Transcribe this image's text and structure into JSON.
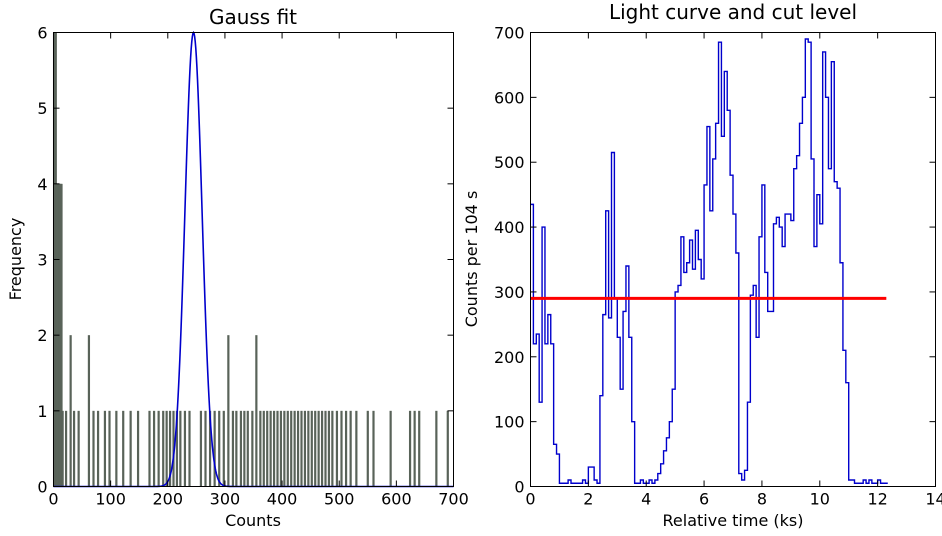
{
  "chart_data": [
    {
      "type": "histogram",
      "title": "Gauss fit",
      "xlabel": "Counts",
      "ylabel": "Frequency",
      "xlim": [
        0,
        700
      ],
      "ylim": [
        0,
        6
      ],
      "x_ticks": [
        "0",
        "100",
        "200",
        "300",
        "400",
        "500",
        "600",
        "700"
      ],
      "y_ticks": [
        "0",
        "1",
        "2",
        "3",
        "4",
        "5",
        "6"
      ],
      "colors": {
        "bars": "#596359",
        "fit": "#0000cc"
      },
      "histogram_bars": [
        {
          "x": 1,
          "y": 6
        },
        {
          "x": 4,
          "y": 6
        },
        {
          "x": 6,
          "y": 4
        },
        {
          "x": 8,
          "y": 4
        },
        {
          "x": 10,
          "y": 4
        },
        {
          "x": 12,
          "y": 4
        },
        {
          "x": 14,
          "y": 4
        },
        {
          "x": 16,
          "y": 1
        },
        {
          "x": 22,
          "y": 1
        },
        {
          "x": 30,
          "y": 2
        },
        {
          "x": 36,
          "y": 1
        },
        {
          "x": 44,
          "y": 1
        },
        {
          "x": 62,
          "y": 2
        },
        {
          "x": 70,
          "y": 1
        },
        {
          "x": 78,
          "y": 1
        },
        {
          "x": 90,
          "y": 1
        },
        {
          "x": 98,
          "y": 1
        },
        {
          "x": 110,
          "y": 1
        },
        {
          "x": 122,
          "y": 1
        },
        {
          "x": 135,
          "y": 1
        },
        {
          "x": 148,
          "y": 1
        },
        {
          "x": 168,
          "y": 1
        },
        {
          "x": 176,
          "y": 1
        },
        {
          "x": 184,
          "y": 1
        },
        {
          "x": 192,
          "y": 1
        },
        {
          "x": 198,
          "y": 1
        },
        {
          "x": 204,
          "y": 1
        },
        {
          "x": 210,
          "y": 1
        },
        {
          "x": 216,
          "y": 1
        },
        {
          "x": 222,
          "y": 1
        },
        {
          "x": 230,
          "y": 1
        },
        {
          "x": 238,
          "y": 1
        },
        {
          "x": 258,
          "y": 1
        },
        {
          "x": 266,
          "y": 1
        },
        {
          "x": 274,
          "y": 1
        },
        {
          "x": 282,
          "y": 1
        },
        {
          "x": 290,
          "y": 1
        },
        {
          "x": 298,
          "y": 1
        },
        {
          "x": 306,
          "y": 2
        },
        {
          "x": 314,
          "y": 1
        },
        {
          "x": 320,
          "y": 1
        },
        {
          "x": 328,
          "y": 1
        },
        {
          "x": 334,
          "y": 1
        },
        {
          "x": 340,
          "y": 1
        },
        {
          "x": 348,
          "y": 1
        },
        {
          "x": 355,
          "y": 2
        },
        {
          "x": 362,
          "y": 1
        },
        {
          "x": 368,
          "y": 1
        },
        {
          "x": 374,
          "y": 1
        },
        {
          "x": 380,
          "y": 1
        },
        {
          "x": 386,
          "y": 1
        },
        {
          "x": 392,
          "y": 1
        },
        {
          "x": 398,
          "y": 1
        },
        {
          "x": 404,
          "y": 1
        },
        {
          "x": 410,
          "y": 1
        },
        {
          "x": 416,
          "y": 1
        },
        {
          "x": 422,
          "y": 1
        },
        {
          "x": 428,
          "y": 1
        },
        {
          "x": 434,
          "y": 1
        },
        {
          "x": 440,
          "y": 1
        },
        {
          "x": 446,
          "y": 1
        },
        {
          "x": 452,
          "y": 1
        },
        {
          "x": 458,
          "y": 1
        },
        {
          "x": 464,
          "y": 1
        },
        {
          "x": 470,
          "y": 1
        },
        {
          "x": 476,
          "y": 1
        },
        {
          "x": 482,
          "y": 1
        },
        {
          "x": 488,
          "y": 1
        },
        {
          "x": 496,
          "y": 1
        },
        {
          "x": 504,
          "y": 1
        },
        {
          "x": 512,
          "y": 1
        },
        {
          "x": 520,
          "y": 1
        },
        {
          "x": 530,
          "y": 1
        },
        {
          "x": 550,
          "y": 1
        },
        {
          "x": 560,
          "y": 1
        },
        {
          "x": 590,
          "y": 1
        },
        {
          "x": 624,
          "y": 1
        },
        {
          "x": 632,
          "y": 1
        },
        {
          "x": 640,
          "y": 1
        },
        {
          "x": 670,
          "y": 1
        },
        {
          "x": 690,
          "y": 1
        }
      ],
      "gauss_fit": {
        "amplitude": 6,
        "mean": 245,
        "sigma": 15
      }
    },
    {
      "type": "line",
      "title": "Light curve and cut level",
      "xlabel": "Relative time (ks)",
      "ylabel": "Counts per 104 s",
      "xlim": [
        0,
        14
      ],
      "ylim": [
        0,
        700
      ],
      "x_ticks": [
        "0",
        "2",
        "4",
        "6",
        "8",
        "10",
        "12",
        "14"
      ],
      "y_ticks": [
        "0",
        "100",
        "200",
        "300",
        "400",
        "500",
        "600",
        "700"
      ],
      "colors": {
        "curve": "#0000cc",
        "cut": "#ff0000"
      },
      "series": [
        {
          "step": "post",
          "points": [
            [
              0.0,
              435
            ],
            [
              0.1,
              220
            ],
            [
              0.2,
              235
            ],
            [
              0.3,
              130
            ],
            [
              0.4,
              400
            ],
            [
              0.5,
              220
            ],
            [
              0.6,
              265
            ],
            [
              0.7,
              220
            ],
            [
              0.8,
              65
            ],
            [
              0.9,
              50
            ],
            [
              1.0,
              5
            ],
            [
              1.3,
              10
            ],
            [
              1.4,
              5
            ],
            [
              1.8,
              10
            ],
            [
              1.9,
              5
            ],
            [
              2.0,
              30
            ],
            [
              2.2,
              10
            ],
            [
              2.3,
              5
            ],
            [
              2.4,
              140
            ],
            [
              2.5,
              265
            ],
            [
              2.6,
              425
            ],
            [
              2.7,
              260
            ],
            [
              2.8,
              515
            ],
            [
              2.9,
              290
            ],
            [
              3.0,
              230
            ],
            [
              3.1,
              150
            ],
            [
              3.2,
              270
            ],
            [
              3.3,
              340
            ],
            [
              3.4,
              230
            ],
            [
              3.5,
              100
            ],
            [
              3.6,
              5
            ],
            [
              3.8,
              10
            ],
            [
              3.9,
              5
            ],
            [
              4.1,
              10
            ],
            [
              4.2,
              5
            ],
            [
              4.3,
              10
            ],
            [
              4.4,
              20
            ],
            [
              4.5,
              35
            ],
            [
              4.6,
              55
            ],
            [
              4.7,
              75
            ],
            [
              4.8,
              100
            ],
            [
              4.9,
              150
            ],
            [
              5.0,
              300
            ],
            [
              5.1,
              310
            ],
            [
              5.2,
              385
            ],
            [
              5.3,
              330
            ],
            [
              5.4,
              345
            ],
            [
              5.5,
              380
            ],
            [
              5.6,
              335
            ],
            [
              5.7,
              395
            ],
            [
              5.8,
              350
            ],
            [
              5.9,
              320
            ],
            [
              6.0,
              465
            ],
            [
              6.1,
              555
            ],
            [
              6.2,
              425
            ],
            [
              6.3,
              505
            ],
            [
              6.4,
              560
            ],
            [
              6.5,
              685
            ],
            [
              6.6,
              540
            ],
            [
              6.7,
              640
            ],
            [
              6.8,
              580
            ],
            [
              6.9,
              480
            ],
            [
              7.0,
              420
            ],
            [
              7.1,
              360
            ],
            [
              7.2,
              20
            ],
            [
              7.3,
              10
            ],
            [
              7.4,
              25
            ],
            [
              7.5,
              130
            ],
            [
              7.6,
              295
            ],
            [
              7.7,
              310
            ],
            [
              7.8,
              230
            ],
            [
              7.9,
              385
            ],
            [
              8.0,
              465
            ],
            [
              8.1,
              330
            ],
            [
              8.2,
              270
            ],
            [
              8.3,
              270
            ],
            [
              8.4,
              405
            ],
            [
              8.5,
              415
            ],
            [
              8.6,
              400
            ],
            [
              8.7,
              370
            ],
            [
              8.8,
              420
            ],
            [
              8.9,
              420
            ],
            [
              9.0,
              410
            ],
            [
              9.1,
              490
            ],
            [
              9.2,
              510
            ],
            [
              9.3,
              560
            ],
            [
              9.4,
              600
            ],
            [
              9.5,
              690
            ],
            [
              9.6,
              685
            ],
            [
              9.7,
              505
            ],
            [
              9.8,
              370
            ],
            [
              9.9,
              450
            ],
            [
              10.0,
              405
            ],
            [
              10.1,
              670
            ],
            [
              10.2,
              600
            ],
            [
              10.3,
              490
            ],
            [
              10.4,
              655
            ],
            [
              10.5,
              470
            ],
            [
              10.6,
              460
            ],
            [
              10.7,
              345
            ],
            [
              10.8,
              210
            ],
            [
              10.9,
              160
            ],
            [
              11.0,
              10
            ],
            [
              11.2,
              5
            ],
            [
              11.5,
              10
            ],
            [
              11.6,
              5
            ],
            [
              11.7,
              10
            ],
            [
              11.8,
              5
            ],
            [
              12.0,
              10
            ],
            [
              12.1,
              5
            ],
            [
              12.3,
              5
            ]
          ]
        }
      ],
      "cut_level": {
        "y": 290,
        "x_start": 0,
        "x_end": 12.3
      }
    }
  ]
}
